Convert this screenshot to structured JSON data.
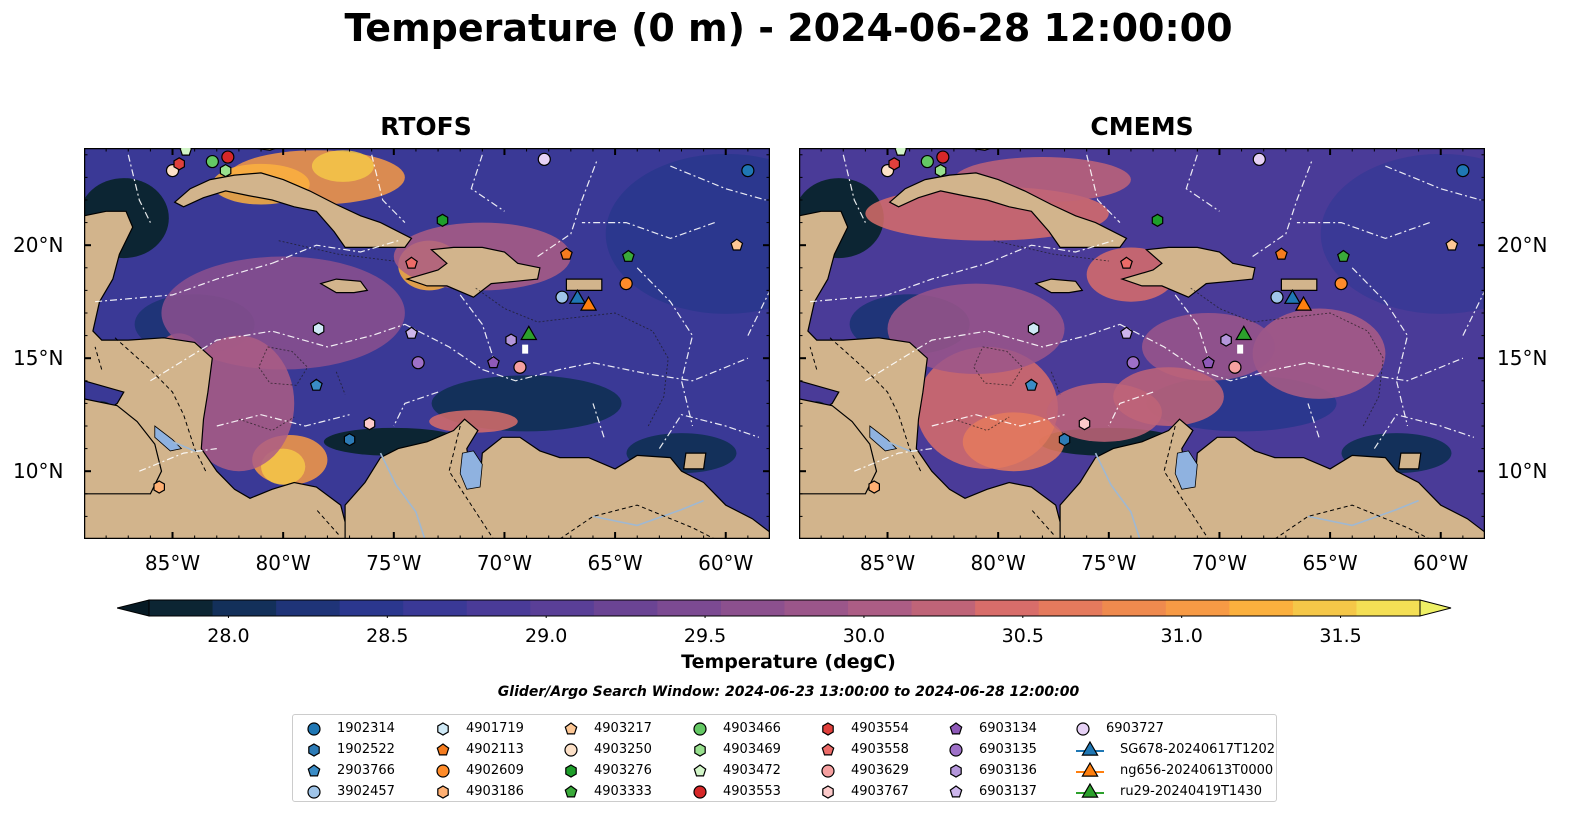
{
  "title": "Temperature (0 m) - 2024-06-28 12:00:00",
  "panels": [
    {
      "title": "RTOFS"
    },
    {
      "title": "CMEMS"
    }
  ],
  "axes": {
    "lon_labels": [
      "85°W",
      "80°W",
      "75°W",
      "70°W",
      "65°W",
      "60°W"
    ],
    "lon_values": [
      -85,
      -80,
      -75,
      -70,
      -65,
      -60
    ],
    "lat_labels": [
      "20°N",
      "15°N",
      "10°N"
    ],
    "lat_values": [
      20,
      15,
      10
    ],
    "lon_range": [
      -89,
      -58
    ],
    "lat_range": [
      7.0,
      24.3
    ]
  },
  "colorbar": {
    "label": "Temperature (degC)",
    "ticks": [
      "28.0",
      "28.5",
      "29.0",
      "29.5",
      "30.0",
      "30.5",
      "31.0",
      "31.5"
    ],
    "tick_values": [
      28.0,
      28.5,
      29.0,
      29.5,
      30.0,
      30.5,
      31.0,
      31.5
    ],
    "range": [
      27.75,
      31.75
    ],
    "colors": [
      "#0c2533",
      "#13305a",
      "#1f3478",
      "#2b378e",
      "#3a3996",
      "#4a3b98",
      "#5a3f97",
      "#6b4494",
      "#7c4a92",
      "#8c508e",
      "#9b568a",
      "#ac5d85",
      "#bf6478",
      "#d86d6a",
      "#e57a5d",
      "#ef8a4e",
      "#f79a45",
      "#fbb03e",
      "#f5c748",
      "#f4df55"
    ],
    "extend_min": "#071a24",
    "extend_max": "#eef065"
  },
  "search_window": "Glider/Argo Search Window: 2024-06-23 13:00:00 to 2024-06-28 12:00:00",
  "legend": [
    {
      "label": "1902314",
      "marker": "circle",
      "color": "#1f77b4"
    },
    {
      "label": "1902522",
      "marker": "hexagon",
      "color": "#2c7bb6"
    },
    {
      "label": "2903766",
      "marker": "pentagon",
      "color": "#3a8cc6"
    },
    {
      "label": "3902457",
      "marker": "circle",
      "color": "#9fc4e8"
    },
    {
      "label": "4901719",
      "marker": "hexagon",
      "color": "#cfe9f6"
    },
    {
      "label": "4902113",
      "marker": "pentagon",
      "color": "#f57c1f"
    },
    {
      "label": "4902609",
      "marker": "circle",
      "color": "#ff8c2a"
    },
    {
      "label": "4903186",
      "marker": "hexagon",
      "color": "#ffb073"
    },
    {
      "label": "4903217",
      "marker": "pentagon",
      "color": "#fdc795"
    },
    {
      "label": "4903250",
      "marker": "circle",
      "color": "#fde1c8"
    },
    {
      "label": "4903276",
      "marker": "hexagon",
      "color": "#1e9e2a"
    },
    {
      "label": "4903333",
      "marker": "pentagon",
      "color": "#3aaa3a"
    },
    {
      "label": "4903466",
      "marker": "circle",
      "color": "#64c864"
    },
    {
      "label": "4903469",
      "marker": "hexagon",
      "color": "#98e08e"
    },
    {
      "label": "4903472",
      "marker": "pentagon",
      "color": "#d2f5c8"
    },
    {
      "label": "4903553",
      "marker": "circle",
      "color": "#d62728"
    },
    {
      "label": "4903554",
      "marker": "hexagon",
      "color": "#e0403c"
    },
    {
      "label": "4903558",
      "marker": "pentagon",
      "color": "#ec6b68"
    },
    {
      "label": "4903629",
      "marker": "circle",
      "color": "#f5a0a0"
    },
    {
      "label": "4903767",
      "marker": "hexagon",
      "color": "#fccaca"
    },
    {
      "label": "6903134",
      "marker": "pentagon",
      "color": "#8e59b8"
    },
    {
      "label": "6903135",
      "marker": "circle",
      "color": "#9e70c8"
    },
    {
      "label": "6903136",
      "marker": "hexagon",
      "color": "#b496db"
    },
    {
      "label": "6903137",
      "marker": "pentagon",
      "color": "#cdb6ec"
    },
    {
      "label": "6903727",
      "marker": "circle",
      "color": "#e6d1f5"
    },
    {
      "label": "SG678-20240617T1202",
      "marker": "triangle",
      "color": "#1f77b4"
    },
    {
      "label": "ng656-20240613T0000",
      "marker": "triangle",
      "color": "#ff7f0e"
    },
    {
      "label": "ru29-20240419T1430",
      "marker": "triangle",
      "color": "#2ca02c"
    }
  ],
  "markers": [
    {
      "id": "1902314",
      "lon": -59.0,
      "lat": 23.3
    },
    {
      "id": "1902522",
      "lon": -77.0,
      "lat": 11.4
    },
    {
      "id": "2903766",
      "lon": -78.5,
      "lat": 13.8
    },
    {
      "id": "3902457",
      "lon": -67.4,
      "lat": 17.7
    },
    {
      "id": "4901719",
      "lon": -78.4,
      "lat": 16.3
    },
    {
      "id": "4902113",
      "lon": -67.2,
      "lat": 19.6
    },
    {
      "id": "4902609",
      "lon": -64.5,
      "lat": 18.3
    },
    {
      "id": "4903186",
      "lon": -85.6,
      "lat": 9.3
    },
    {
      "id": "4903217",
      "lon": -59.5,
      "lat": 20.0
    },
    {
      "id": "4903250",
      "lon": -85.0,
      "lat": 23.3
    },
    {
      "id": "4903276",
      "lon": -72.8,
      "lat": 21.1
    },
    {
      "id": "4903333",
      "lon": -64.4,
      "lat": 19.5
    },
    {
      "id": "4903466",
      "lon": -83.2,
      "lat": 23.7
    },
    {
      "id": "4903469",
      "lon": -82.6,
      "lat": 23.3
    },
    {
      "id": "4903472",
      "lon": -84.4,
      "lat": 24.2
    },
    {
      "id": "4903553",
      "lon": -82.5,
      "lat": 23.9
    },
    {
      "id": "4903554",
      "lon": -84.7,
      "lat": 23.6
    },
    {
      "id": "4903558",
      "lon": -74.2,
      "lat": 19.2
    },
    {
      "id": "4903629",
      "lon": -69.3,
      "lat": 14.6
    },
    {
      "id": "4903767",
      "lon": -76.1,
      "lat": 12.1
    },
    {
      "id": "6903134",
      "lon": -70.5,
      "lat": 14.8
    },
    {
      "id": "6903135",
      "lon": -73.9,
      "lat": 14.8
    },
    {
      "id": "6903136",
      "lon": -69.7,
      "lat": 15.8
    },
    {
      "id": "6903137",
      "lon": -74.2,
      "lat": 16.1
    },
    {
      "id": "6903727",
      "lon": -68.2,
      "lat": 23.8
    },
    {
      "id": "SG678-20240617T1202",
      "lon": -66.7,
      "lat": 17.7
    },
    {
      "id": "ng656-20240613T0000",
      "lon": -66.2,
      "lat": 17.4
    },
    {
      "id": "ru29-20240419T1430",
      "lon": -68.9,
      "lat": 16.1
    }
  ]
}
